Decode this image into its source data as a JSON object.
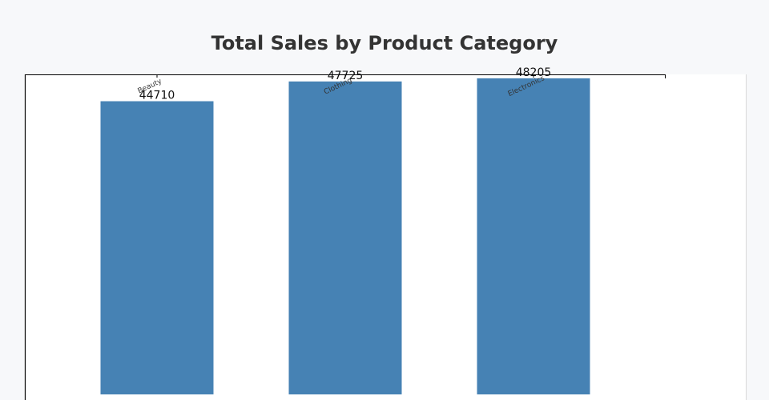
{
  "chart_data": {
    "type": "bar",
    "title": "Total Sales by Product Category",
    "categories": [
      "Beauty",
      "Clothing",
      "Electronics"
    ],
    "values": [
      44710,
      47725,
      48205
    ],
    "xlabel": "",
    "ylabel": "",
    "ylim": [
      0,
      48800
    ],
    "grid": false,
    "colors": {
      "bar": "#4682b4",
      "axis": "#000000",
      "panel_background": "#ffffff",
      "page_background": "#f7f8fa"
    }
  }
}
